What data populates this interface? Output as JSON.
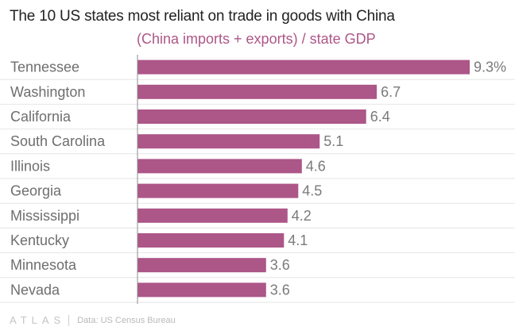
{
  "title": "The 10 US states most reliant on trade in goods with China",
  "subtitle": "(China imports + exports) / state GDP",
  "colors": {
    "bar": "#ad5688",
    "subtitle": "#ad5688",
    "gridline": "#e6e6e6",
    "axis": "#8c8c8c"
  },
  "footer": {
    "brand": "ATLAS",
    "source": "Data: US Census Bureau"
  },
  "chart_data": {
    "type": "bar",
    "orientation": "horizontal",
    "title": "The 10 US states most reliant on trade in goods with China",
    "subtitle": "(China imports + exports) / state GDP",
    "categories": [
      "Tennessee",
      "Washington",
      "California",
      "South Carolina",
      "Illinois",
      "Georgia",
      "Mississippi",
      "Kentucky",
      "Minnesota",
      "Nevada"
    ],
    "values": [
      9.3,
      6.7,
      6.4,
      5.1,
      4.6,
      4.5,
      4.2,
      4.1,
      3.6,
      3.6
    ],
    "value_labels": [
      "9.3%",
      "6.7",
      "6.4",
      "5.1",
      "4.6",
      "4.5",
      "4.2",
      "4.1",
      "3.6",
      "3.6"
    ],
    "xlim": [
      0,
      9.3
    ],
    "xlabel": "",
    "ylabel": "",
    "grid": true
  }
}
